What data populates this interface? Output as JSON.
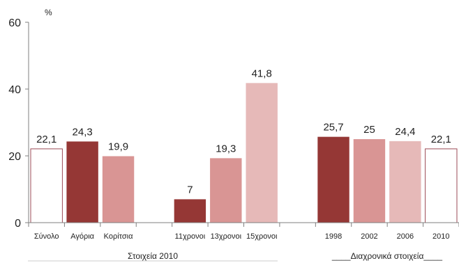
{
  "chart_data": {
    "type": "bar",
    "ylabel": "%",
    "ylim": [
      0,
      60
    ],
    "yticks": [
      0,
      20,
      40,
      60
    ],
    "grid": false,
    "colors": {
      "outline": "#9b4a55",
      "dark": "#953735",
      "medium": "#d99594",
      "light": "#e6b9b8",
      "axis": "#7f7f7f"
    },
    "categories": [
      "Σύνολο",
      "Αγόρια",
      "Κορίτσια",
      "",
      "11χρονοι",
      "13χρονοι",
      "15χρονοι",
      "",
      "1998",
      "2002",
      "2006",
      "2010"
    ],
    "bars": [
      {
        "category": "Σύνολο",
        "value": 22.1,
        "label": "22,1",
        "style": "outline"
      },
      {
        "category": "Αγόρια",
        "value": 24.3,
        "label": "24,3",
        "style": "dark"
      },
      {
        "category": "Κορίτσια",
        "value": 19.9,
        "label": "19,9",
        "style": "medium"
      },
      {
        "category": "",
        "value": null,
        "label": "",
        "style": "none"
      },
      {
        "category": "11χρονοι",
        "value": 7,
        "label": "7",
        "style": "dark"
      },
      {
        "category": "13χρονοι",
        "value": 19.3,
        "label": "19,3",
        "style": "medium"
      },
      {
        "category": "15χρονοι",
        "value": 41.8,
        "label": "41,8",
        "style": "light"
      },
      {
        "category": "",
        "value": null,
        "label": "",
        "style": "none"
      },
      {
        "category": "1998",
        "value": 25.7,
        "label": "25,7",
        "style": "dark"
      },
      {
        "category": "2002",
        "value": 25,
        "label": "25",
        "style": "medium"
      },
      {
        "category": "2006",
        "value": 24.4,
        "label": "24,4",
        "style": "light"
      },
      {
        "category": "2010",
        "value": 22.1,
        "label": "22,1",
        "style": "outline"
      }
    ],
    "group_labels": [
      "Στοιχεία 2010",
      "____Διαχρονικά στοιχεία____"
    ]
  }
}
